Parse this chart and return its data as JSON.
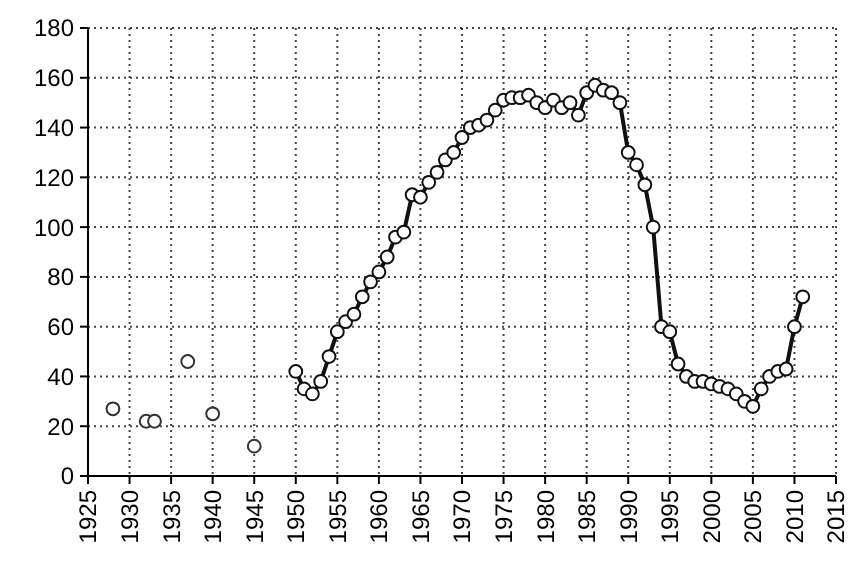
{
  "chart_data": {
    "type": "line",
    "xlim": [
      1925,
      2015
    ],
    "xticks": [
      1925,
      1930,
      1935,
      1940,
      1945,
      1950,
      1955,
      1960,
      1965,
      1970,
      1975,
      1980,
      1985,
      1990,
      1995,
      2000,
      2005,
      2010,
      2015
    ],
    "ylim": [
      0,
      180
    ],
    "yticks": [
      0,
      20,
      40,
      60,
      80,
      100,
      120,
      140,
      160,
      180
    ],
    "grid": true,
    "marker": "circle",
    "line_style": "solid",
    "series": [
      {
        "type": "scatter",
        "color": "#333333",
        "x": [
          1928,
          1932,
          1933,
          1937,
          1940,
          1945
        ],
        "values": [
          27,
          22,
          22,
          46,
          25,
          12
        ]
      },
      {
        "color": "#111111",
        "x": [
          1950,
          1951,
          1952,
          1953,
          1954,
          1955,
          1956,
          1957,
          1958,
          1959,
          1960,
          1961,
          1962,
          1963,
          1964,
          1965,
          1966,
          1967,
          1968,
          1969,
          1970,
          1971,
          1972,
          1973,
          1974,
          1975,
          1976,
          1977,
          1978,
          1979,
          1980,
          1981,
          1982,
          1983,
          1984,
          1985,
          1986,
          1987,
          1988,
          1989,
          1990,
          1991,
          1992,
          1993,
          1994,
          1995,
          1996,
          1997,
          1998,
          1999,
          2000,
          2001,
          2002,
          2003,
          2004,
          2005,
          2006,
          2007,
          2008,
          2009,
          2010,
          2011
        ],
        "values": [
          42,
          35,
          33,
          38,
          48,
          58,
          62,
          65,
          72,
          78,
          82,
          88,
          96,
          98,
          113,
          112,
          118,
          122,
          127,
          130,
          136,
          140,
          141,
          143,
          147,
          151,
          152,
          152,
          153,
          150,
          148,
          151,
          148,
          150,
          145,
          154,
          157,
          155,
          154,
          150,
          130,
          125,
          117,
          100,
          60,
          58,
          45,
          40,
          38,
          38,
          37,
          36,
          35,
          33,
          30,
          28,
          35,
          40,
          42,
          43,
          60,
          72
        ]
      }
    ]
  }
}
